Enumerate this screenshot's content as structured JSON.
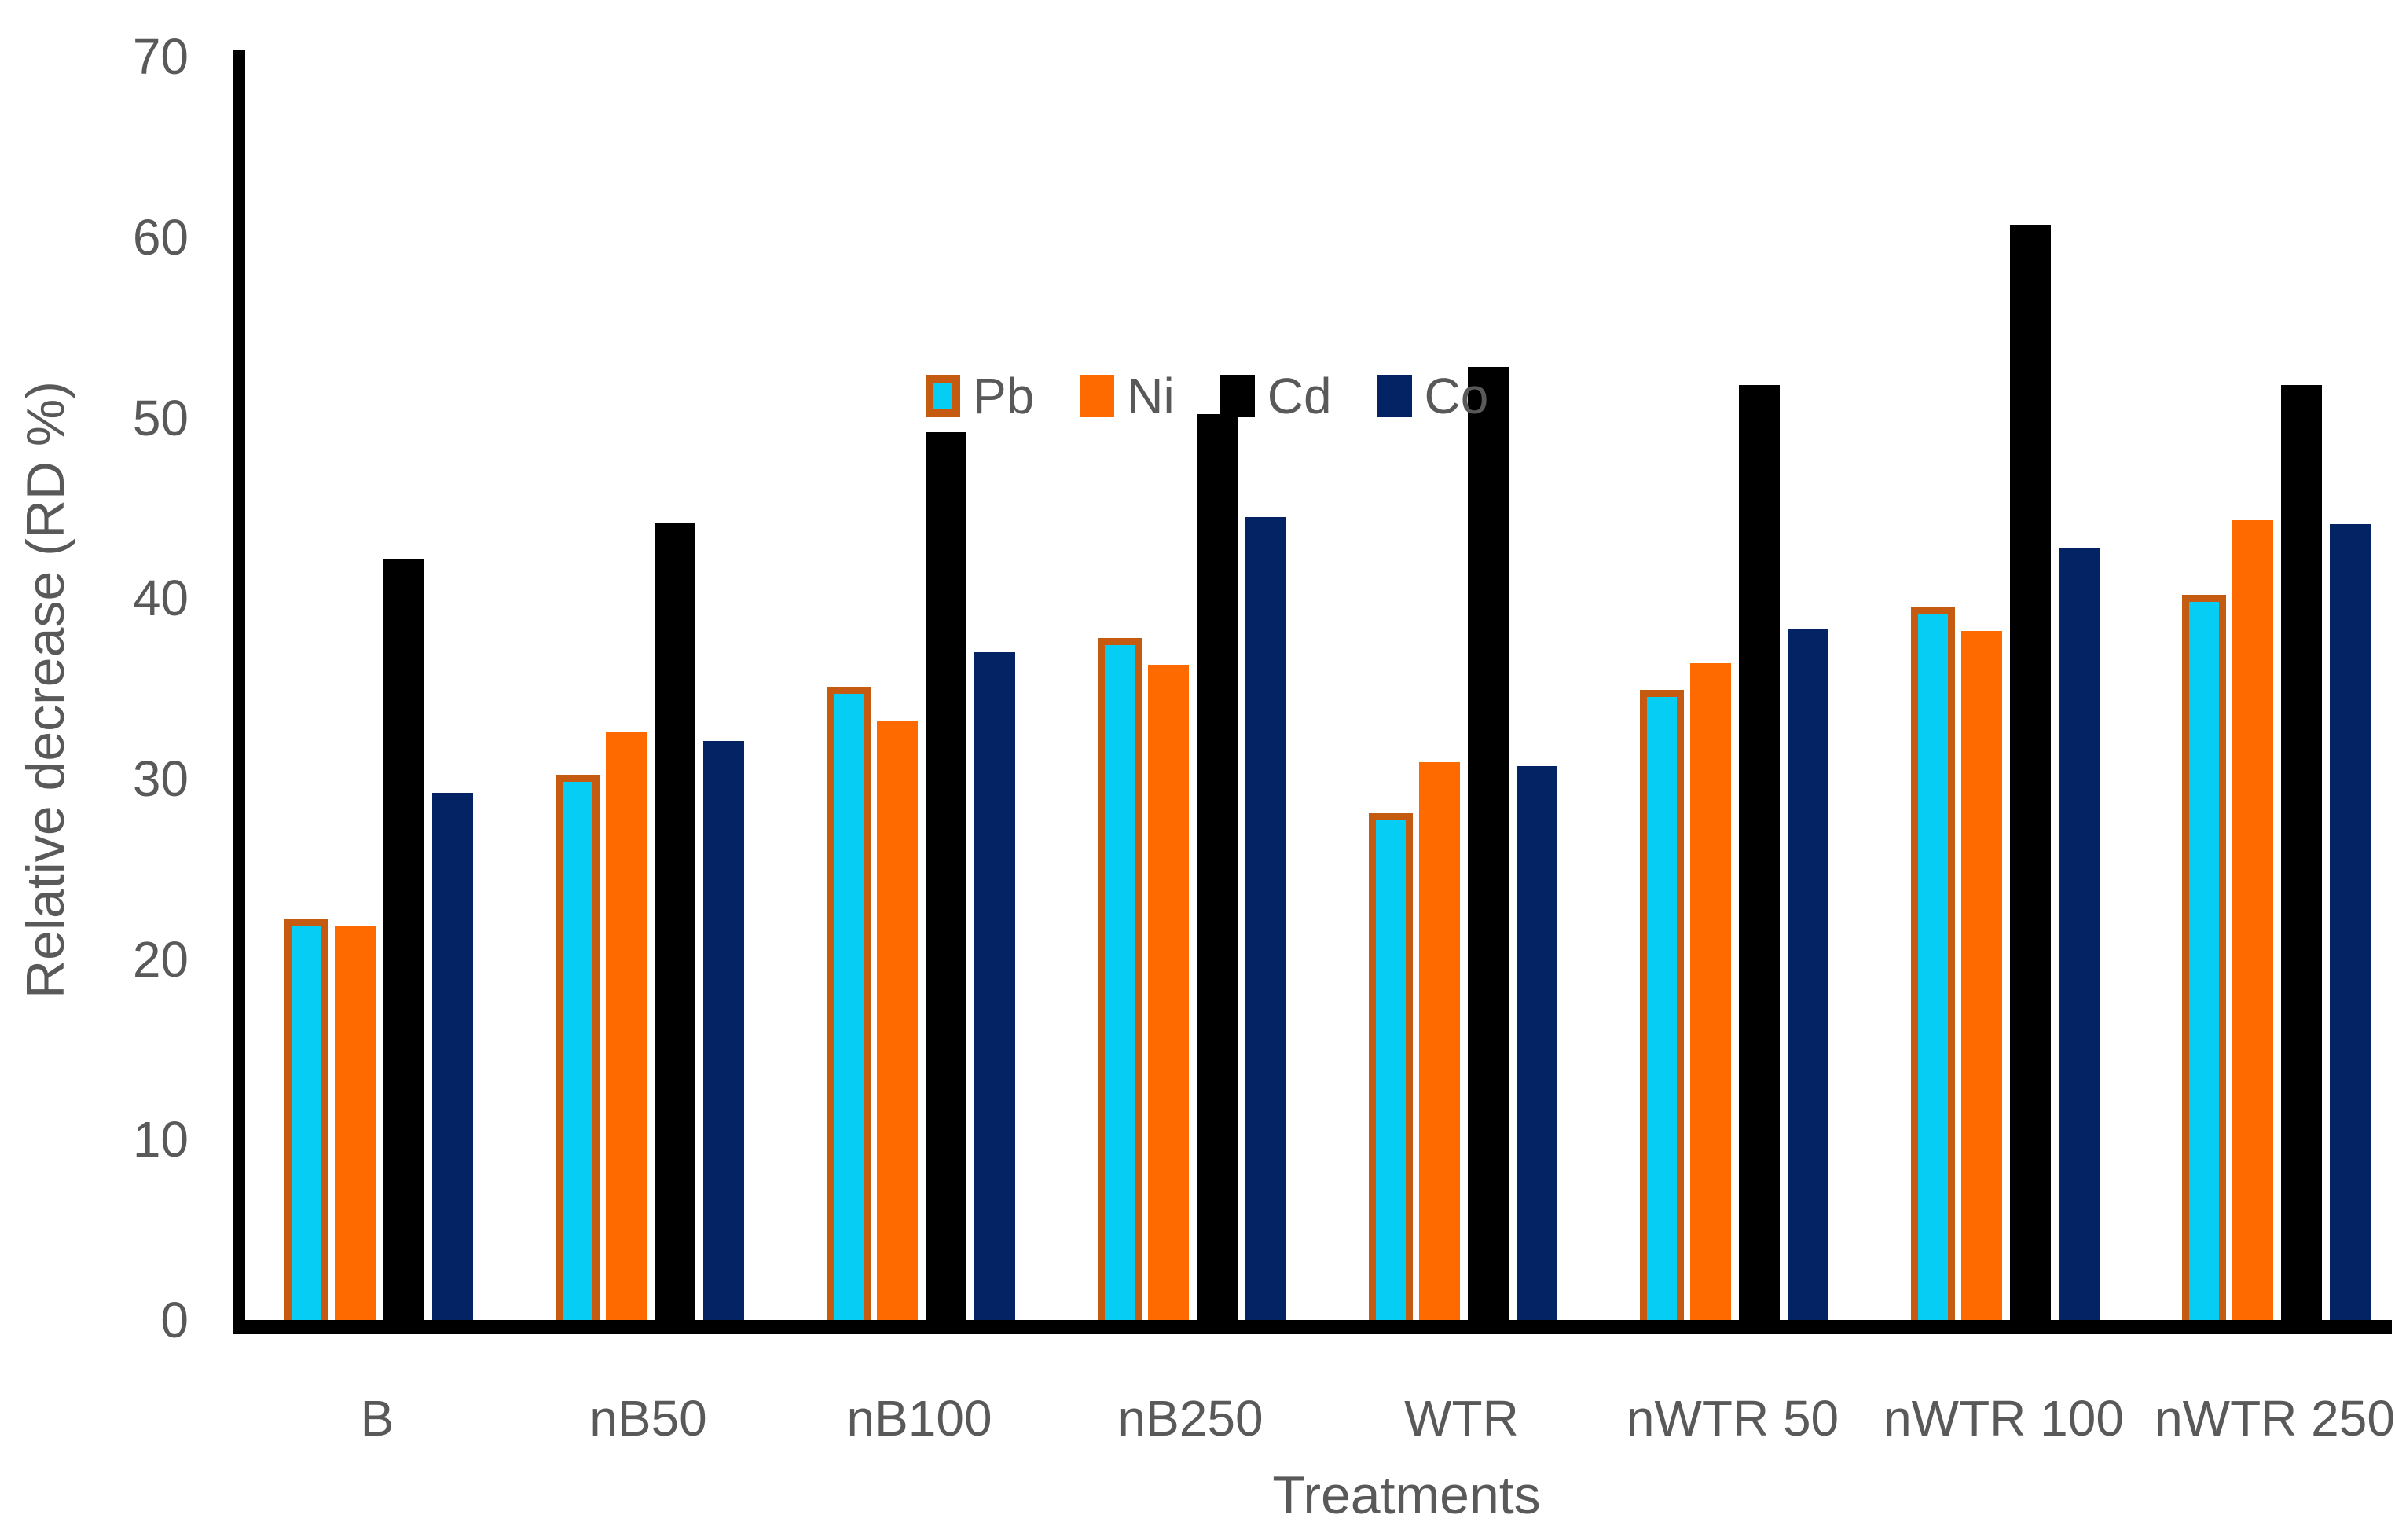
{
  "figure": {
    "background": "#FFFFFF",
    "text_color": "#595959",
    "axis_color": "#000000"
  },
  "chart_data": {
    "type": "bar",
    "title": "",
    "xlabel": "Treatments",
    "ylabel": "Relative decrease (RD %)",
    "ylim": [
      0,
      70
    ],
    "yticks": [
      0,
      10,
      20,
      30,
      40,
      50,
      60,
      70
    ],
    "grid": false,
    "legend_position": "inside-top-center",
    "legend_labels": [
      "Pb",
      "Ni",
      "Cd",
      "Co"
    ],
    "categories": [
      "B",
      "nB50",
      "nB100",
      "nB250",
      "WTR",
      "nWTR 50",
      "nWTR 100",
      "nWTR 250"
    ],
    "series": [
      {
        "name": "Pb",
        "fill": "#06CDF4",
        "stroke": "#C55A11",
        "values": [
          22.2,
          30.2,
          35.1,
          37.8,
          28.1,
          34.9,
          39.5,
          40.2
        ]
      },
      {
        "name": "Ni",
        "fill": "#FE6A00",
        "stroke": null,
        "values": [
          21.8,
          32.6,
          33.2,
          36.3,
          30.9,
          36.4,
          38.2,
          44.3
        ]
      },
      {
        "name": "Cd",
        "fill": "#000000",
        "stroke": null,
        "values": [
          42.2,
          44.2,
          49.2,
          50.2,
          52.8,
          51.8,
          60.7,
          51.8
        ]
      },
      {
        "name": "Co",
        "fill": "#042365",
        "stroke": null,
        "values": [
          29.2,
          32.1,
          37.0,
          44.5,
          30.7,
          38.3,
          42.8,
          44.1
        ]
      }
    ]
  }
}
